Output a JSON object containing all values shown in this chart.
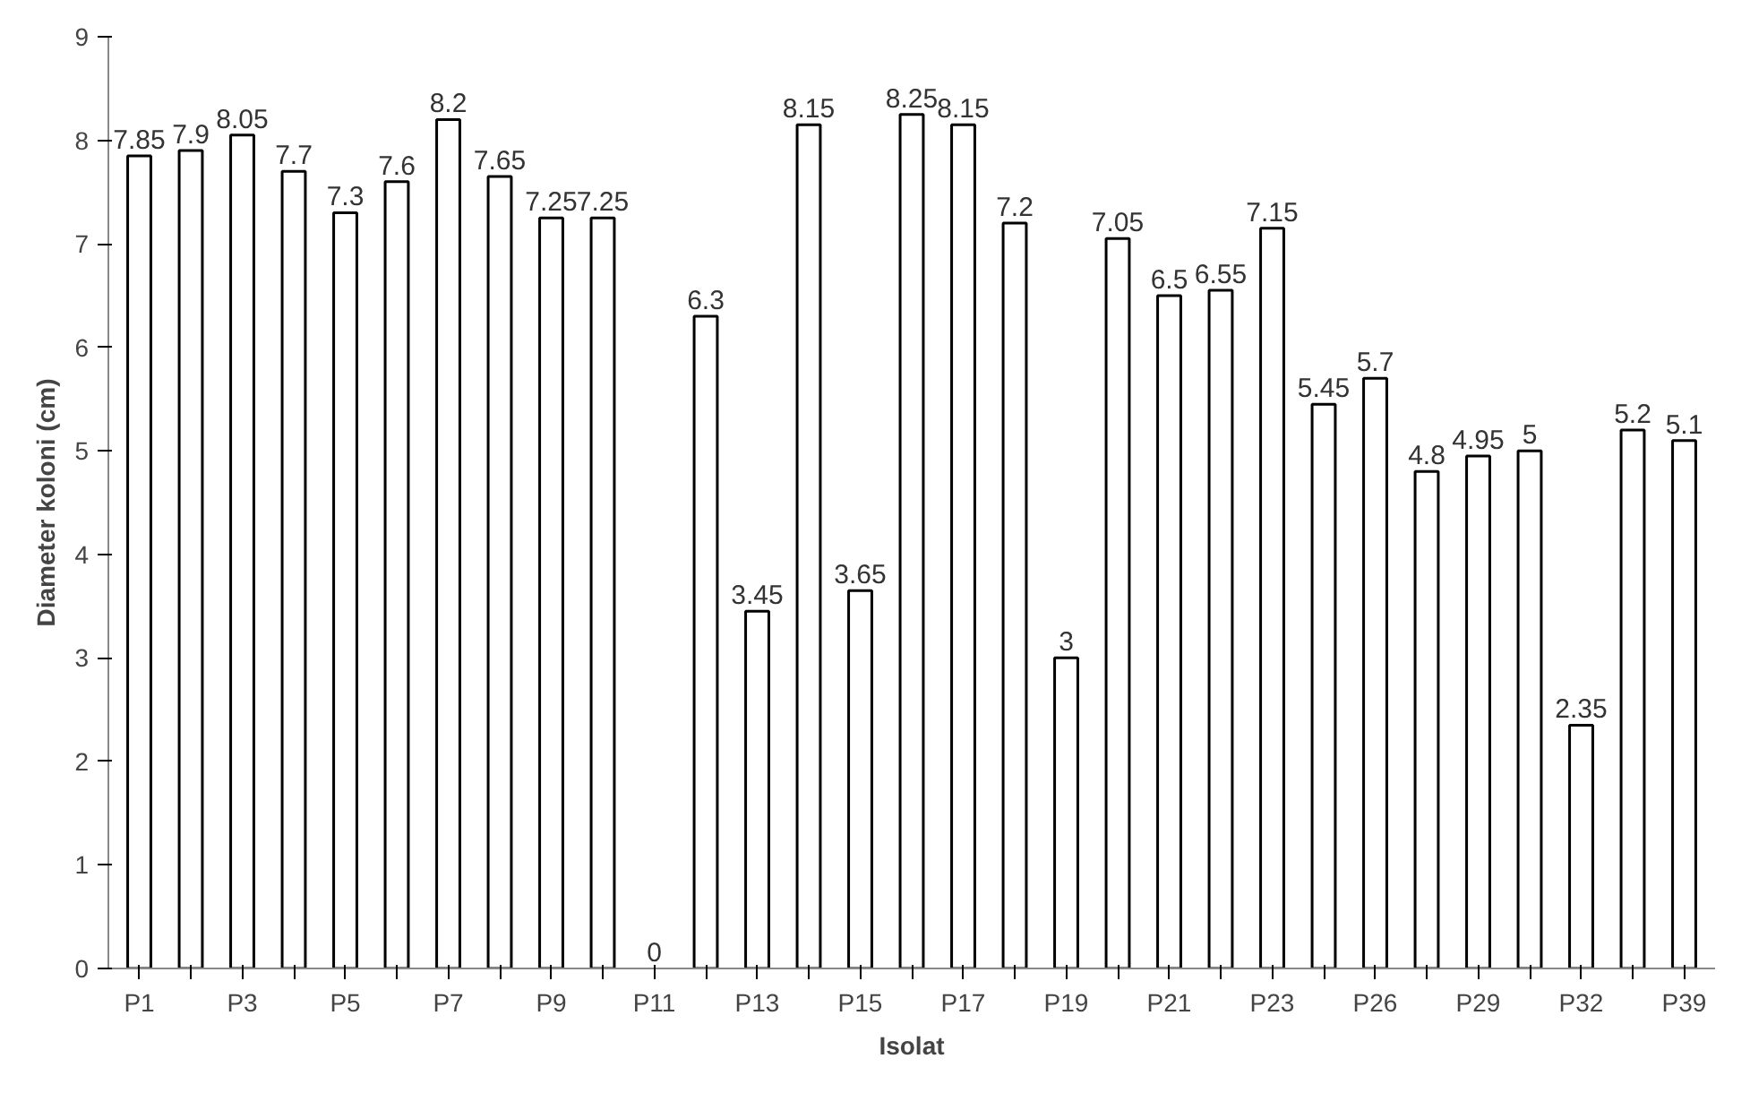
{
  "chart_data": {
    "type": "bar",
    "xlabel": "Isolat",
    "ylabel": "Diameter koloni (cm)",
    "categories": [
      "P1",
      null,
      "P3",
      null,
      "P5",
      null,
      "P7",
      null,
      "P9",
      null,
      "P11",
      null,
      "P13",
      null,
      "P15",
      null,
      "P17",
      null,
      "P19",
      null,
      "P21",
      null,
      "P23",
      null,
      "P26",
      null,
      "P29",
      null,
      "P32",
      null,
      "P39"
    ],
    "series": [
      {
        "color": "#ffffff",
        "values": [
          7.85,
          7.9,
          8.05,
          7.7,
          7.3,
          7.6,
          8.2,
          7.65,
          7.25,
          7.25,
          0,
          6.3,
          3.45,
          8.15,
          3.65,
          8.25,
          8.15,
          7.2,
          3,
          7.05,
          6.5,
          6.55,
          7.15,
          5.45,
          5.7,
          4.8,
          4.95,
          5,
          2.35,
          5.2,
          5.1
        ]
      }
    ],
    "ylim": [
      0,
      9
    ],
    "yticks": [
      0,
      1,
      2,
      3,
      4,
      5,
      6,
      7,
      8,
      9
    ],
    "grid": false,
    "data_labels": true
  }
}
